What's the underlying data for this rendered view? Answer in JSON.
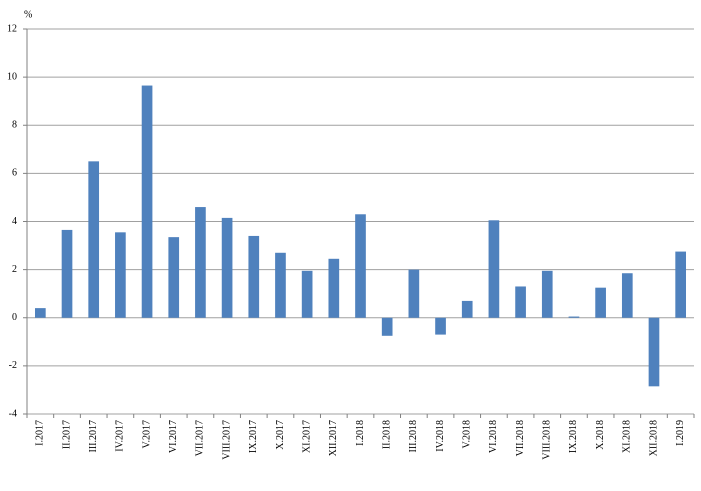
{
  "chart_data": {
    "type": "bar",
    "y_label": "%",
    "categories": [
      "I.2017",
      "II.2017",
      "III.2017",
      "IV.2017",
      "V.2017",
      "VI.2017",
      "VII.2017",
      "VIII.2017",
      "IX.2017",
      "X.2017",
      "XI.2017",
      "XII.2017",
      "I.2018",
      "II.2018",
      "III.2018",
      "IV.2018",
      "V.2018",
      "VI.2018",
      "VII.2018",
      "VIII.2018",
      "IX.2018",
      "X.2018",
      "XI.2018",
      "XII.2018",
      "I.2019"
    ],
    "values": [
      0.4,
      3.65,
      6.5,
      3.55,
      9.65,
      3.35,
      4.6,
      4.15,
      3.4,
      2.7,
      1.95,
      2.45,
      4.3,
      -0.75,
      2.0,
      -0.7,
      0.7,
      4.05,
      1.3,
      1.95,
      0.05,
      1.25,
      1.85,
      -2.85,
      2.75
    ],
    "color": "#4f81bd",
    "ylim": [
      -4,
      12
    ],
    "yticks": [
      -4,
      -2,
      0,
      2,
      4,
      6,
      8,
      10,
      12
    ],
    "grid": true
  }
}
